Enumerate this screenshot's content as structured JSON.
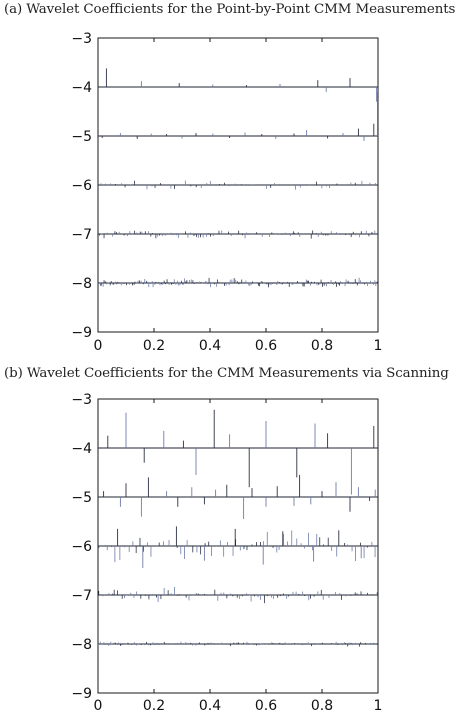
{
  "colors": {
    "axis": "#1a1a1a",
    "stem_dark": "#2b3145",
    "stem_blue": "#6e7da8",
    "baseline": "#1f2533"
  },
  "chart_data": [
    {
      "type": "stem",
      "title": "(a) Wavelet Coefficients for the Point-by-Point CMM Measurements",
      "xlabel": "",
      "ylabel": "",
      "xlim": [
        0,
        1
      ],
      "ylim": [
        -9,
        -3
      ],
      "xticks": [
        "0",
        "0.2",
        "0.4",
        "0.6",
        "0.8",
        "1"
      ],
      "yticks": [
        "-3",
        "-4",
        "-5",
        "-6",
        "-7",
        "-8",
        "-9"
      ],
      "grid": false,
      "series": [
        {
          "level": -4,
          "stems": [
            [
              0.03,
              0.38
            ],
            [
              0.155,
              0.12
            ],
            [
              0.29,
              0.08
            ],
            [
              0.41,
              0.05
            ],
            [
              0.53,
              0.04
            ],
            [
              0.65,
              0.06
            ],
            [
              0.785,
              0.14
            ],
            [
              0.815,
              -0.1
            ],
            [
              0.9,
              0.18
            ],
            [
              0.995,
              -0.3
            ]
          ]
        },
        {
          "level": -5,
          "stems": [
            [
              0.015,
              -0.04
            ],
            [
              0.08,
              0.06
            ],
            [
              0.14,
              -0.06
            ],
            [
              0.19,
              0.05
            ],
            [
              0.245,
              0.04
            ],
            [
              0.3,
              -0.05
            ],
            [
              0.35,
              0.06
            ],
            [
              0.41,
              0.05
            ],
            [
              0.47,
              -0.04
            ],
            [
              0.525,
              0.07
            ],
            [
              0.585,
              0.04
            ],
            [
              0.635,
              -0.06
            ],
            [
              0.7,
              0.05
            ],
            [
              0.745,
              0.12
            ],
            [
              0.82,
              -0.05
            ],
            [
              0.875,
              0.06
            ],
            [
              0.93,
              0.15
            ],
            [
              0.95,
              -0.1
            ],
            [
              0.985,
              0.25
            ],
            [
              0.998,
              0.9
            ]
          ]
        },
        {
          "level": -6,
          "density": 56,
          "amp": 0.09
        },
        {
          "level": -7,
          "density": 110,
          "amp": 0.08
        },
        {
          "level": -8,
          "density": 200,
          "amp": 0.09
        }
      ]
    },
    {
      "type": "stem",
      "title": "(b) Wavelet Coefficients for the CMM Measurements via Scanning",
      "xlabel": "",
      "ylabel": "",
      "xlim": [
        0,
        1
      ],
      "ylim": [
        -9,
        -3
      ],
      "xticks": [
        "0",
        "0.2",
        "0.4",
        "0.6",
        "0.8",
        "1"
      ],
      "yticks": [
        "-3",
        "-4",
        "-5",
        "-6",
        "-7",
        "-8",
        "-9"
      ],
      "grid": false,
      "series": [
        {
          "level": -4,
          "stems": [
            [
              0.035,
              0.25
            ],
            [
              0.1,
              0.72
            ],
            [
              0.165,
              -0.3
            ],
            [
              0.235,
              0.35
            ],
            [
              0.305,
              0.15
            ],
            [
              0.35,
              -0.55
            ],
            [
              0.415,
              0.78
            ],
            [
              0.47,
              0.28
            ],
            [
              0.54,
              -0.8
            ],
            [
              0.6,
              0.55
            ],
            [
              0.71,
              -0.6
            ],
            [
              0.775,
              0.5
            ],
            [
              0.82,
              0.3
            ],
            [
              0.905,
              -0.95
            ],
            [
              0.985,
              0.45
            ]
          ]
        },
        {
          "level": -5,
          "stems": [
            [
              0.02,
              0.12
            ],
            [
              0.08,
              -0.2
            ],
            [
              0.1,
              0.28
            ],
            [
              0.155,
              -0.4
            ],
            [
              0.18,
              0.4
            ],
            [
              0.245,
              0.12
            ],
            [
              0.285,
              -0.2
            ],
            [
              0.335,
              0.2
            ],
            [
              0.38,
              -0.15
            ],
            [
              0.42,
              0.15
            ],
            [
              0.46,
              0.25
            ],
            [
              0.52,
              -0.45
            ],
            [
              0.55,
              0.18
            ],
            [
              0.6,
              -0.2
            ],
            [
              0.64,
              0.22
            ],
            [
              0.7,
              -0.18
            ],
            [
              0.72,
              0.45
            ],
            [
              0.76,
              -0.15
            ],
            [
              0.8,
              0.12
            ],
            [
              0.85,
              0.3
            ],
            [
              0.9,
              -0.3
            ],
            [
              0.93,
              0.2
            ],
            [
              0.97,
              -0.08
            ],
            [
              0.99,
              0.15
            ]
          ]
        },
        {
          "level": -6,
          "density": 70,
          "amp": 0.28,
          "stems": [
            [
              0.07,
              0.35
            ],
            [
              0.16,
              -0.45
            ],
            [
              0.28,
              0.4
            ],
            [
              0.38,
              -0.3
            ],
            [
              0.49,
              0.35
            ],
            [
              0.59,
              -0.38
            ],
            [
              0.66,
              0.3
            ],
            [
              0.77,
              -0.32
            ],
            [
              0.86,
              0.32
            ],
            [
              0.94,
              -0.25
            ]
          ]
        },
        {
          "level": -7,
          "density": 90,
          "amp": 0.16
        },
        {
          "level": -8,
          "density": 170,
          "amp": 0.045
        }
      ]
    }
  ]
}
